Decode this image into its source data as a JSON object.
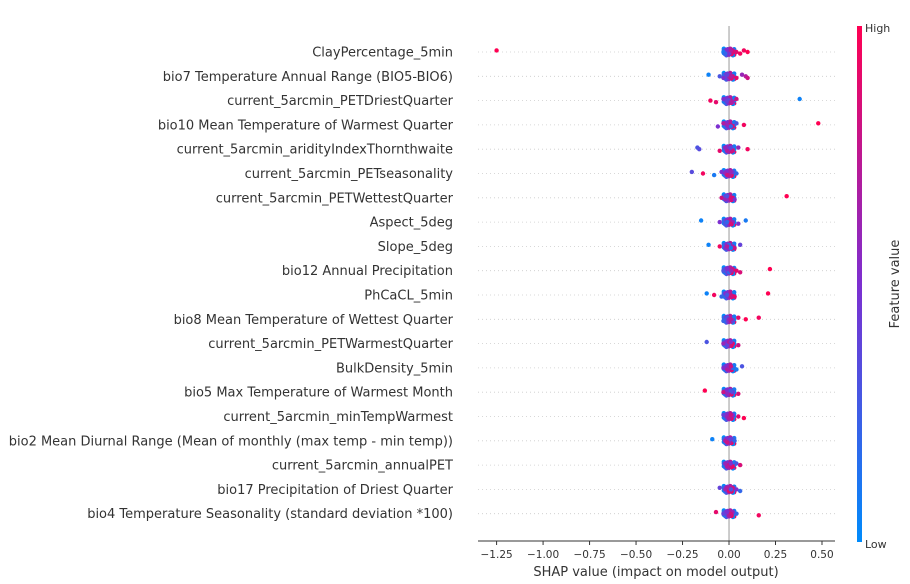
{
  "chart_data": {
    "type": "scatter",
    "subtype": "beeswarm",
    "xlabel": "SHAP value (impact on model output)",
    "xlim": [
      -1.35,
      0.57
    ],
    "xticks": [
      -1.25,
      -1.0,
      -0.75,
      -0.5,
      -0.25,
      0.0,
      0.25,
      0.5
    ],
    "xtick_labels": [
      "−1.25",
      "−1.00",
      "−0.75",
      "−0.50",
      "−0.25",
      "0.00",
      "0.25",
      "0.50"
    ],
    "colorbar": {
      "label": "Feature value",
      "high_label": "High",
      "low_label": "Low",
      "low_color": "#008bfb",
      "high_color": "#ff0052"
    },
    "grid": "horizontal dotted per feature",
    "features": [
      {
        "name": "ClayPercentage_5min",
        "points": [
          [
            -1.25,
            1.0
          ],
          [
            -0.03,
            0.1
          ],
          [
            0.0,
            0.4
          ],
          [
            0.02,
            0.8
          ],
          [
            0.04,
            0.9
          ],
          [
            0.06,
            0.95
          ],
          [
            0.08,
            0.95
          ],
          [
            0.1,
            1.0
          ],
          [
            -0.01,
            0.5
          ],
          [
            0.01,
            0.7
          ],
          [
            0.03,
            0.85
          ],
          [
            -0.02,
            0.2
          ]
        ]
      },
      {
        "name": "bio7 Temperature Annual Range (BIO5-BIO6)",
        "points": [
          [
            -0.11,
            0.05
          ],
          [
            -0.05,
            0.3
          ],
          [
            -0.03,
            0.5
          ],
          [
            0.0,
            0.6
          ],
          [
            0.02,
            0.8
          ],
          [
            0.04,
            0.9
          ],
          [
            0.07,
            0.6
          ],
          [
            0.09,
            0.7
          ],
          [
            0.1,
            0.8
          ],
          [
            -0.01,
            0.4
          ],
          [
            0.01,
            0.7
          ]
        ]
      },
      {
        "name": "current_5arcmin_PETDriestQuarter",
        "points": [
          [
            0.38,
            0.05
          ],
          [
            -0.1,
            0.95
          ],
          [
            -0.07,
            0.9
          ],
          [
            -0.03,
            0.5
          ],
          [
            0.0,
            0.3
          ],
          [
            0.02,
            0.6
          ],
          [
            0.04,
            0.8
          ],
          [
            -0.01,
            0.4
          ],
          [
            0.01,
            0.7
          ]
        ]
      },
      {
        "name": "bio10 Mean Temperature of Warmest Quarter",
        "points": [
          [
            0.48,
            1.0
          ],
          [
            0.08,
            0.95
          ],
          [
            -0.06,
            0.5
          ],
          [
            -0.03,
            0.7
          ],
          [
            0.0,
            0.8
          ],
          [
            0.02,
            0.85
          ],
          [
            0.04,
            0.3
          ],
          [
            -0.01,
            0.6
          ],
          [
            0.01,
            0.2
          ]
        ]
      },
      {
        "name": "current_5arcmin_aridityIndexThornthwaite",
        "points": [
          [
            -0.17,
            0.3
          ],
          [
            -0.16,
            0.35
          ],
          [
            -0.05,
            0.9
          ],
          [
            -0.02,
            0.6
          ],
          [
            0.0,
            0.5
          ],
          [
            0.02,
            0.8
          ],
          [
            0.05,
            0.6
          ],
          [
            0.1,
            0.95
          ],
          [
            -0.01,
            0.7
          ],
          [
            0.01,
            0.4
          ]
        ]
      },
      {
        "name": "current_5arcmin_PETseasonality",
        "points": [
          [
            -0.2,
            0.35
          ],
          [
            -0.14,
            0.95
          ],
          [
            -0.08,
            0.1
          ],
          [
            -0.04,
            0.5
          ],
          [
            -0.02,
            0.6
          ],
          [
            0.0,
            0.7
          ],
          [
            0.02,
            0.4
          ],
          [
            0.04,
            0.2
          ],
          [
            -0.01,
            0.8
          ],
          [
            0.01,
            0.6
          ]
        ]
      },
      {
        "name": "current_5arcmin_PETWettestQuarter",
        "points": [
          [
            0.31,
            1.0
          ],
          [
            -0.04,
            0.8
          ],
          [
            -0.02,
            0.6
          ],
          [
            0.0,
            0.7
          ],
          [
            0.02,
            0.9
          ],
          [
            0.03,
            0.5
          ],
          [
            -0.01,
            0.3
          ],
          [
            0.01,
            0.85
          ]
        ]
      },
      {
        "name": "Aspect_5deg",
        "points": [
          [
            -0.15,
            0.05
          ],
          [
            -0.05,
            0.5
          ],
          [
            -0.02,
            0.3
          ],
          [
            0.0,
            0.7
          ],
          [
            0.02,
            0.6
          ],
          [
            0.05,
            0.5
          ],
          [
            0.09,
            0.1
          ],
          [
            -0.01,
            0.2
          ],
          [
            0.01,
            0.85
          ]
        ]
      },
      {
        "name": "Slope_5deg",
        "points": [
          [
            -0.11,
            0.05
          ],
          [
            -0.05,
            0.95
          ],
          [
            -0.02,
            0.5
          ],
          [
            0.0,
            0.2
          ],
          [
            0.02,
            0.6
          ],
          [
            0.03,
            0.8
          ],
          [
            0.06,
            0.4
          ],
          [
            -0.01,
            0.7
          ],
          [
            0.01,
            0.1
          ]
        ]
      },
      {
        "name": "bio12 Annual Precipitation",
        "points": [
          [
            0.22,
            1.0
          ],
          [
            -0.03,
            0.3
          ],
          [
            0.0,
            0.2
          ],
          [
            0.02,
            0.8
          ],
          [
            0.04,
            0.9
          ],
          [
            0.06,
            0.85
          ],
          [
            -0.01,
            0.5
          ],
          [
            0.01,
            0.6
          ]
        ]
      },
      {
        "name": "PhCaCL_5min",
        "points": [
          [
            -0.12,
            0.05
          ],
          [
            -0.08,
            0.95
          ],
          [
            -0.04,
            0.2
          ],
          [
            -0.02,
            0.5
          ],
          [
            0.0,
            0.7
          ],
          [
            0.03,
            0.9
          ],
          [
            0.21,
            1.0
          ],
          [
            -0.01,
            0.3
          ],
          [
            0.01,
            0.8
          ]
        ]
      },
      {
        "name": "bio8 Mean Temperature of Wettest Quarter",
        "points": [
          [
            0.16,
            0.95
          ],
          [
            0.09,
            1.0
          ],
          [
            -0.03,
            0.2
          ],
          [
            -0.01,
            0.3
          ],
          [
            0.0,
            0.6
          ],
          [
            0.02,
            0.4
          ],
          [
            0.05,
            0.9
          ],
          [
            0.01,
            0.7
          ]
        ]
      },
      {
        "name": "current_5arcmin_PETWarmestQuarter",
        "points": [
          [
            -0.12,
            0.3
          ],
          [
            -0.03,
            0.6
          ],
          [
            -0.01,
            0.4
          ],
          [
            0.0,
            0.7
          ],
          [
            0.02,
            0.9
          ],
          [
            0.05,
            0.8
          ],
          [
            0.01,
            0.5
          ]
        ]
      },
      {
        "name": "BulkDensity_5min",
        "points": [
          [
            0.07,
            0.3
          ],
          [
            -0.03,
            0.5
          ],
          [
            -0.01,
            0.7
          ],
          [
            0.0,
            0.6
          ],
          [
            0.02,
            0.2
          ],
          [
            0.04,
            0.1
          ],
          [
            0.01,
            0.8
          ]
        ]
      },
      {
        "name": "bio5 Max Temperature of Warmest Month",
        "points": [
          [
            -0.13,
            1.0
          ],
          [
            -0.03,
            0.8
          ],
          [
            -0.01,
            0.6
          ],
          [
            0.0,
            0.5
          ],
          [
            0.02,
            0.4
          ],
          [
            0.05,
            0.85
          ],
          [
            0.01,
            0.3
          ]
        ]
      },
      {
        "name": "current_5arcmin_minTempWarmest",
        "points": [
          [
            -0.03,
            0.4
          ],
          [
            -0.01,
            0.6
          ],
          [
            0.0,
            0.7
          ],
          [
            0.02,
            0.5
          ],
          [
            0.05,
            0.9
          ],
          [
            0.08,
            1.0
          ],
          [
            0.01,
            0.8
          ]
        ]
      },
      {
        "name": "bio2 Mean Diurnal Range (Mean of monthly (max temp - min temp))",
        "points": [
          [
            -0.09,
            0.05
          ],
          [
            -0.02,
            0.7
          ],
          [
            0.0,
            0.6
          ],
          [
            0.02,
            0.3
          ],
          [
            0.03,
            0.2
          ],
          [
            -0.01,
            0.8
          ],
          [
            0.01,
            0.4
          ]
        ]
      },
      {
        "name": "current_5arcmin_annualPET",
        "points": [
          [
            -0.02,
            0.6
          ],
          [
            0.0,
            0.8
          ],
          [
            0.02,
            0.9
          ],
          [
            0.04,
            0.3
          ],
          [
            0.06,
            0.85
          ],
          [
            -0.01,
            0.7
          ],
          [
            0.01,
            0.5
          ]
        ]
      },
      {
        "name": "bio17 Precipitation of Driest Quarter",
        "points": [
          [
            -0.05,
            0.4
          ],
          [
            -0.02,
            0.6
          ],
          [
            0.0,
            0.9
          ],
          [
            0.02,
            0.8
          ],
          [
            0.04,
            0.5
          ],
          [
            0.06,
            0.2
          ],
          [
            -0.01,
            0.7
          ],
          [
            0.01,
            0.3
          ]
        ]
      },
      {
        "name": "bio4 Temperature Seasonality (standard deviation *100)",
        "points": [
          [
            -0.07,
            0.9
          ],
          [
            -0.03,
            0.4
          ],
          [
            0.0,
            0.7
          ],
          [
            0.02,
            0.6
          ],
          [
            0.04,
            0.2
          ],
          [
            0.16,
            0.95
          ],
          [
            -0.01,
            0.5
          ],
          [
            0.01,
            0.8
          ]
        ]
      }
    ]
  }
}
